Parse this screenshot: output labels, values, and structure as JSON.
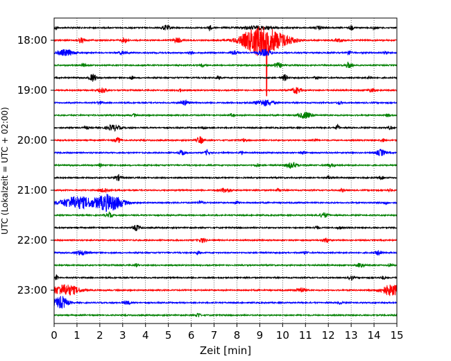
{
  "chart_data": {
    "type": "line",
    "title": "",
    "xlabel": "Zeit  [min]",
    "ylabel": "UTC (Lokalzeit = UTC + 02:00)",
    "xlim": [
      0,
      15
    ],
    "x_ticks": [
      0,
      1,
      2,
      3,
      4,
      5,
      6,
      7,
      8,
      9,
      10,
      11,
      12,
      13,
      14,
      15
    ],
    "y_ticks": [
      "18:00",
      "19:00",
      "20:00",
      "21:00",
      "22:00",
      "23:00"
    ],
    "grid": "vertical dotted",
    "trace_interval_minutes": 15,
    "trace_colors": [
      "#000000",
      "#ff0000",
      "#0000ff",
      "#008000"
    ],
    "series": [
      {
        "start": "17:45",
        "color": "#000000",
        "noise": 0.9,
        "events": [
          {
            "t": 0.1,
            "amp": 3.4,
            "dur": 0.05
          },
          {
            "t": 4.9,
            "amp": 3.4,
            "dur": 0.2
          },
          {
            "t": 6.8,
            "amp": 4.5,
            "dur": 0.08
          },
          {
            "t": 9.0,
            "amp": 2.2,
            "dur": 0.8
          },
          {
            "t": 11.6,
            "amp": 2.2,
            "dur": 0.2
          },
          {
            "t": 13.0,
            "amp": 3.4,
            "dur": 0.08
          },
          {
            "t": 14.0,
            "amp": 2.2,
            "dur": 0.1
          }
        ]
      },
      {
        "start": "18:00",
        "color": "#ff0000",
        "noise": 0.9,
        "events": [
          {
            "t": 1.2,
            "amp": 3.4,
            "dur": 0.15
          },
          {
            "t": 3.1,
            "amp": 3.4,
            "dur": 0.15
          },
          {
            "t": 5.4,
            "amp": 3.4,
            "dur": 0.2
          },
          {
            "t": 9.0,
            "amp": 22.0,
            "dur": 0.75,
            "spike": 80.0,
            "spike_t": 9.3
          },
          {
            "t": 10.0,
            "amp": 6.0,
            "dur": 0.6
          },
          {
            "t": 12.5,
            "amp": 2.2,
            "dur": 0.2
          }
        ]
      },
      {
        "start": "18:15",
        "color": "#0000ff",
        "noise": 0.9,
        "events": [
          {
            "t": 0.5,
            "amp": 4.5,
            "dur": 0.35
          },
          {
            "t": 3.0,
            "amp": 2.2,
            "dur": 0.2
          },
          {
            "t": 6.0,
            "amp": 2.2,
            "dur": 0.1
          },
          {
            "t": 7.9,
            "amp": 3.4,
            "dur": 0.15
          },
          {
            "t": 9.2,
            "amp": 4.5,
            "dur": 0.3
          },
          {
            "t": 12.9,
            "amp": 3.4,
            "dur": 0.1
          },
          {
            "t": 14.5,
            "amp": 2.2,
            "dur": 0.1
          }
        ]
      },
      {
        "start": "18:30",
        "color": "#008000",
        "noise": 0.9,
        "events": [
          {
            "t": 1.3,
            "amp": 2.2,
            "dur": 0.1
          },
          {
            "t": 6.5,
            "amp": 2.2,
            "dur": 0.1
          },
          {
            "t": 9.8,
            "amp": 3.4,
            "dur": 0.2
          },
          {
            "t": 12.9,
            "amp": 4.5,
            "dur": 0.15
          }
        ]
      },
      {
        "start": "18:45",
        "color": "#000000",
        "noise": 0.9,
        "events": [
          {
            "t": 1.7,
            "amp": 5.5,
            "dur": 0.15
          },
          {
            "t": 3.4,
            "amp": 2.2,
            "dur": 0.1
          },
          {
            "t": 7.2,
            "amp": 2.2,
            "dur": 0.1
          },
          {
            "t": 10.1,
            "amp": 4.5,
            "dur": 0.12
          },
          {
            "t": 11.5,
            "amp": 2.2,
            "dur": 0.1
          },
          {
            "t": 13.8,
            "amp": 2.2,
            "dur": 0.1
          }
        ]
      },
      {
        "start": "19:00",
        "color": "#ff0000",
        "noise": 0.9,
        "events": [
          {
            "t": 2.1,
            "amp": 3.4,
            "dur": 0.2
          },
          {
            "t": 5.5,
            "amp": 2.2,
            "dur": 0.1
          },
          {
            "t": 10.6,
            "amp": 4.5,
            "dur": 0.2
          },
          {
            "t": 13.9,
            "amp": 2.2,
            "dur": 0.2
          }
        ]
      },
      {
        "start": "19:15",
        "color": "#0000ff",
        "noise": 0.9,
        "events": [
          {
            "t": 2.0,
            "amp": 2.2,
            "dur": 0.1
          },
          {
            "t": 5.7,
            "amp": 3.4,
            "dur": 0.2
          },
          {
            "t": 9.2,
            "amp": 4.5,
            "dur": 0.4
          },
          {
            "t": 12.5,
            "amp": 2.2,
            "dur": 0.1
          }
        ]
      },
      {
        "start": "19:30",
        "color": "#008000",
        "noise": 0.9,
        "events": [
          {
            "t": 3.5,
            "amp": 2.2,
            "dur": 0.1
          },
          {
            "t": 7.8,
            "amp": 2.2,
            "dur": 0.1
          },
          {
            "t": 11.0,
            "amp": 4.5,
            "dur": 0.3
          },
          {
            "t": 14.6,
            "amp": 2.2,
            "dur": 0.1
          }
        ]
      },
      {
        "start": "19:45",
        "color": "#000000",
        "noise": 0.9,
        "events": [
          {
            "t": 1.4,
            "amp": 2.2,
            "dur": 0.1
          },
          {
            "t": 2.6,
            "amp": 4.0,
            "dur": 0.3
          },
          {
            "t": 6.6,
            "amp": 2.2,
            "dur": 0.1
          },
          {
            "t": 12.4,
            "amp": 4.0,
            "dur": 0.08
          },
          {
            "t": 14.7,
            "amp": 2.2,
            "dur": 0.1
          }
        ]
      },
      {
        "start": "20:00",
        "color": "#ff0000",
        "noise": 0.9,
        "events": [
          {
            "t": 2.8,
            "amp": 3.4,
            "dur": 0.15
          },
          {
            "t": 6.4,
            "amp": 5.0,
            "dur": 0.15
          },
          {
            "t": 8.3,
            "amp": 2.2,
            "dur": 0.1
          },
          {
            "t": 11.4,
            "amp": 2.2,
            "dur": 0.1
          },
          {
            "t": 14.4,
            "amp": 2.2,
            "dur": 0.1
          }
        ]
      },
      {
        "start": "20:15",
        "color": "#0000ff",
        "noise": 0.9,
        "events": [
          {
            "t": 5.6,
            "amp": 3.4,
            "dur": 0.15
          },
          {
            "t": 6.7,
            "amp": 4.0,
            "dur": 0.1
          },
          {
            "t": 8.2,
            "amp": 2.2,
            "dur": 0.1
          },
          {
            "t": 10.9,
            "amp": 2.2,
            "dur": 0.1
          },
          {
            "t": 14.3,
            "amp": 4.5,
            "dur": 0.2
          }
        ]
      },
      {
        "start": "20:30",
        "color": "#008000",
        "noise": 0.9,
        "events": [
          {
            "t": 2.0,
            "amp": 2.2,
            "dur": 0.1
          },
          {
            "t": 8.9,
            "amp": 2.2,
            "dur": 0.1
          },
          {
            "t": 10.4,
            "amp": 4.0,
            "dur": 0.25
          },
          {
            "t": 12.1,
            "amp": 2.2,
            "dur": 0.2
          }
        ]
      },
      {
        "start": "20:45",
        "color": "#000000",
        "noise": 0.9,
        "events": [
          {
            "t": 2.8,
            "amp": 4.0,
            "dur": 0.15
          },
          {
            "t": 12.0,
            "amp": 2.2,
            "dur": 0.1
          },
          {
            "t": 14.3,
            "amp": 2.2,
            "dur": 0.1
          }
        ]
      },
      {
        "start": "21:00",
        "color": "#ff0000",
        "noise": 0.9,
        "events": [
          {
            "t": 2.2,
            "amp": 3.4,
            "dur": 0.2
          },
          {
            "t": 7.5,
            "amp": 3.4,
            "dur": 0.25
          },
          {
            "t": 9.8,
            "amp": 2.2,
            "dur": 0.1
          },
          {
            "t": 12.6,
            "amp": 2.2,
            "dur": 0.1
          },
          {
            "t": 14.7,
            "amp": 2.2,
            "dur": 0.1
          }
        ]
      },
      {
        "start": "21:15",
        "color": "#0000ff",
        "noise": 0.9,
        "events": [
          {
            "t": 1.0,
            "amp": 9.0,
            "dur": 0.7
          },
          {
            "t": 2.4,
            "amp": 12.0,
            "dur": 0.6
          },
          {
            "t": 6.4,
            "amp": 3.4,
            "dur": 0.1
          },
          {
            "t": 8.0,
            "amp": 2.2,
            "dur": 0.1
          },
          {
            "t": 14.5,
            "amp": 2.2,
            "dur": 0.1
          }
        ]
      },
      {
        "start": "21:30",
        "color": "#008000",
        "noise": 0.9,
        "events": [
          {
            "t": 2.4,
            "amp": 3.4,
            "dur": 0.15
          },
          {
            "t": 11.8,
            "amp": 3.4,
            "dur": 0.2
          }
        ]
      },
      {
        "start": "21:45",
        "color": "#000000",
        "noise": 0.9,
        "events": [
          {
            "t": 3.6,
            "amp": 4.0,
            "dur": 0.15
          },
          {
            "t": 11.5,
            "amp": 2.2,
            "dur": 0.1
          },
          {
            "t": 12.5,
            "amp": 2.2,
            "dur": 0.1
          }
        ]
      },
      {
        "start": "22:00",
        "color": "#ff0000",
        "noise": 0.9,
        "events": [
          {
            "t": 6.5,
            "amp": 3.4,
            "dur": 0.15
          },
          {
            "t": 11.9,
            "amp": 3.4,
            "dur": 0.15
          }
        ]
      },
      {
        "start": "22:15",
        "color": "#0000ff",
        "noise": 0.9,
        "events": [
          {
            "t": 1.2,
            "amp": 3.4,
            "dur": 0.25
          },
          {
            "t": 6.3,
            "amp": 2.2,
            "dur": 0.1
          },
          {
            "t": 11.0,
            "amp": 2.2,
            "dur": 0.1
          },
          {
            "t": 14.2,
            "amp": 3.4,
            "dur": 0.15
          }
        ]
      },
      {
        "start": "22:30",
        "color": "#008000",
        "noise": 0.9,
        "events": [
          {
            "t": 3.6,
            "amp": 2.2,
            "dur": 0.1
          },
          {
            "t": 13.4,
            "amp": 3.4,
            "dur": 0.15
          },
          {
            "t": 14.7,
            "amp": 2.2,
            "dur": 0.1
          }
        ]
      },
      {
        "start": "22:45",
        "color": "#000000",
        "noise": 0.9,
        "events": [
          {
            "t": 0.1,
            "amp": 4.0,
            "dur": 0.05
          },
          {
            "t": 13.0,
            "amp": 3.4,
            "dur": 0.1
          },
          {
            "t": 14.4,
            "amp": 2.2,
            "dur": 0.1
          }
        ]
      },
      {
        "start": "23:00",
        "color": "#ff0000",
        "noise": 0.9,
        "events": [
          {
            "t": 0.5,
            "amp": 8.0,
            "dur": 0.6
          },
          {
            "t": 10.8,
            "amp": 3.4,
            "dur": 0.2
          },
          {
            "t": 14.8,
            "amp": 8.0,
            "dur": 0.5
          }
        ]
      },
      {
        "start": "23:15",
        "color": "#0000ff",
        "noise": 0.9,
        "events": [
          {
            "t": 0.3,
            "amp": 9.0,
            "dur": 0.3
          },
          {
            "t": 3.2,
            "amp": 2.2,
            "dur": 0.2
          },
          {
            "t": 12.5,
            "amp": 2.2,
            "dur": 0.1
          }
        ]
      },
      {
        "start": "23:30",
        "color": "#008000",
        "noise": 0.9,
        "events": [
          {
            "t": 6.3,
            "amp": 3.4,
            "dur": 0.1
          }
        ]
      }
    ]
  }
}
